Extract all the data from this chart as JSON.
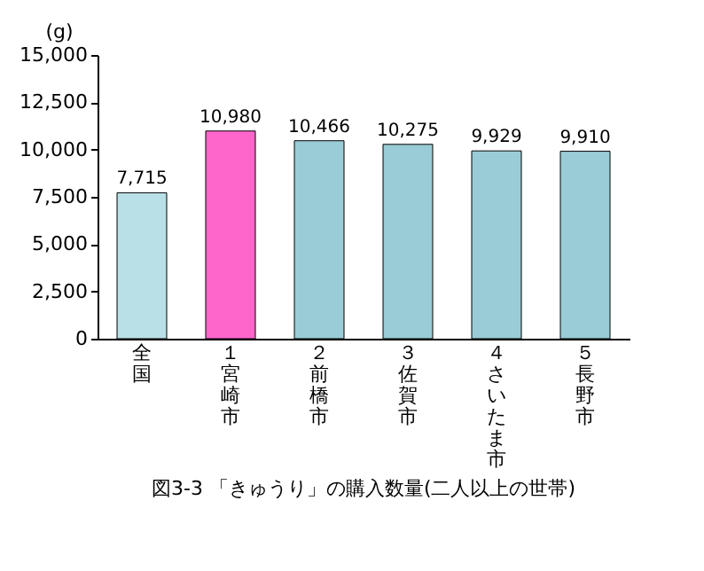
{
  "chart_data": {
    "type": "bar",
    "title": "図3-3 「きゅうり」の購入数量(二人以上の世帯)",
    "ylabel": "(g)",
    "categories": [
      "全国",
      "１宮崎市",
      "２前橋市",
      "３佐賀市",
      "４さいたま市",
      "５長野市"
    ],
    "values": [
      7715,
      10980,
      10466,
      10275,
      9929,
      9910
    ],
    "colors": [
      "#b8e0e6",
      "#ff66cc",
      "#99ccd6",
      "#99ccd6",
      "#99ccd6",
      "#99ccd6"
    ],
    "value_labels": [
      "7,715",
      "10,980",
      "10,466",
      "10,275",
      "9,929",
      "9,910"
    ],
    "ylim": [
      0,
      15000
    ],
    "yticks": [
      0,
      {
        "value": 2500,
        "label": "2,500"
      },
      {
        "value": 5000,
        "label": "5,000"
      },
      {
        "value": 7500,
        "label": "7,500"
      },
      {
        "value": 10000,
        "label": "10,000"
      },
      {
        "value": 12500,
        "label": "12,500"
      },
      {
        "value": 15000,
        "label": "15,000"
      }
    ],
    "grid": false
  }
}
